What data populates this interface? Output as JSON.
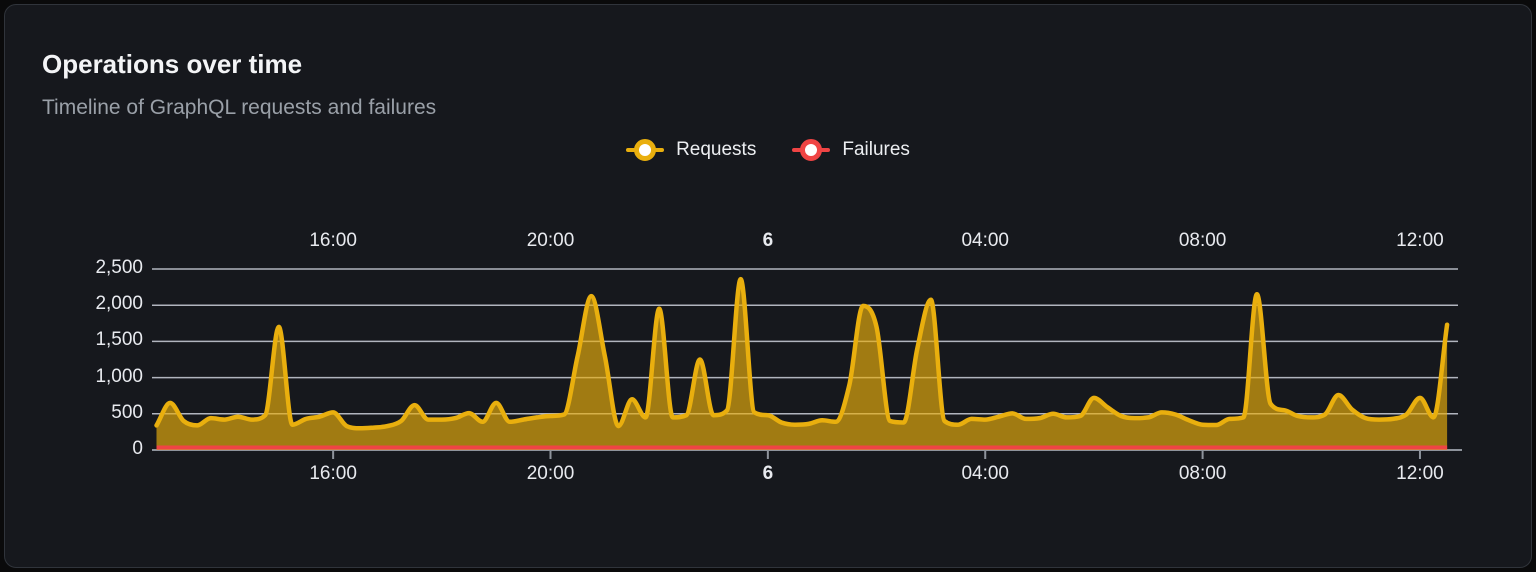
{
  "card": {
    "title": "Operations over time",
    "subtitle": "Timeline of GraphQL requests and failures"
  },
  "legend": {
    "items": [
      {
        "label": "Requests",
        "color": "#e9af0e"
      },
      {
        "label": "Failures",
        "color": "#ef4444"
      }
    ]
  },
  "chart_data": {
    "type": "area",
    "title": "Operations over time",
    "subtitle": "Timeline of GraphQL requests and failures",
    "grid": true,
    "legend_position": "top-center",
    "x_axis": {
      "kind": "time",
      "range_hours": [
        12.6667,
        36.7
      ],
      "ticks": [
        {
          "label": "16:00",
          "hour": 16,
          "bold": false
        },
        {
          "label": "20:00",
          "hour": 20,
          "bold": false
        },
        {
          "label": "6",
          "hour": 24,
          "bold": true
        },
        {
          "label": "04:00",
          "hour": 28,
          "bold": false
        },
        {
          "label": "08:00",
          "hour": 32,
          "bold": false
        },
        {
          "label": "12:00",
          "hour": 36,
          "bold": false
        }
      ],
      "labels_on_top_and_bottom": true
    },
    "y_axis": {
      "range": [
        0,
        2500
      ],
      "tick_values": [
        0,
        500,
        1000,
        1500,
        2000,
        2500
      ],
      "tick_labels": [
        "0",
        "500",
        "1,000",
        "1,500",
        "2,000",
        "2,500"
      ]
    },
    "series": [
      {
        "name": "Requests",
        "color": "#e9af0e",
        "fill_opacity": 0.66,
        "start_hour": 12.75,
        "interval_hours": 0.25,
        "values": [
          340,
          650,
          400,
          340,
          440,
          420,
          460,
          420,
          480,
          1700,
          350,
          430,
          460,
          520,
          330,
          300,
          310,
          330,
          400,
          620,
          420,
          420,
          440,
          510,
          390,
          650,
          390,
          420,
          450,
          470,
          490,
          1300,
          2125,
          1300,
          330,
          700,
          450,
          1950,
          450,
          480,
          1250,
          480,
          550,
          2360,
          520,
          480,
          380,
          350,
          360,
          410,
          390,
          900,
          1990,
          1700,
          400,
          380,
          1400,
          2075,
          400,
          350,
          430,
          420,
          460,
          505,
          430,
          440,
          500,
          450,
          470,
          720,
          590,
          470,
          440,
          450,
          520,
          490,
          410,
          350,
          345,
          430,
          450,
          2150,
          640,
          550,
          470,
          450,
          490,
          760,
          560,
          440,
          420,
          430,
          490,
          720,
          450,
          1730
        ]
      },
      {
        "name": "Failures",
        "color": "#ef4444",
        "constant_value": 0,
        "start_hour": 12.75,
        "end_hour": 36.5
      }
    ],
    "colors": {
      "background": "#16181d",
      "gridline": "#cdd1db",
      "axis_line": "#8e939c",
      "requests": "#e9af0e",
      "failures": "#ef4444"
    }
  }
}
